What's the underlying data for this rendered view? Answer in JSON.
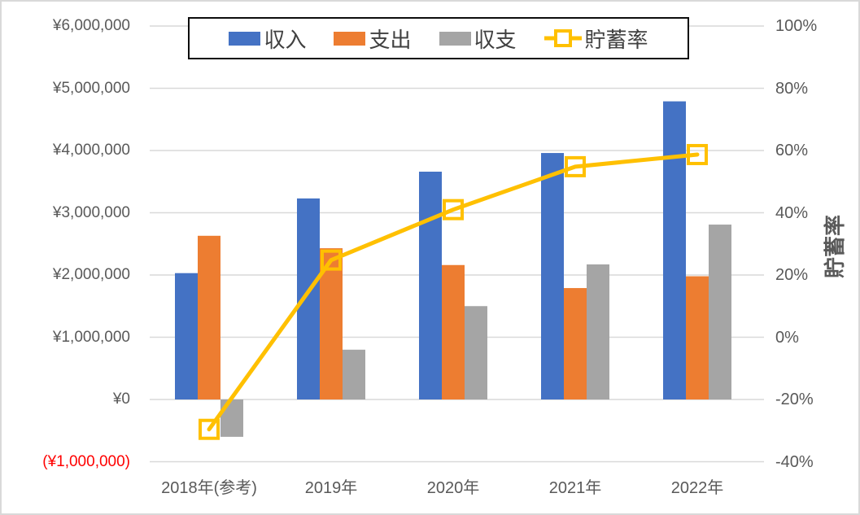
{
  "chart_data": {
    "type": "combo-bar-line",
    "title": "",
    "categories": [
      "2018年(参考)",
      "2019年",
      "2020年",
      "2021年",
      "2022年"
    ],
    "series": [
      {
        "id": "income",
        "name": "収入",
        "type": "bar",
        "axis": "left",
        "color": "#4472C4",
        "values": [
          2030000,
          3230000,
          3660000,
          3960000,
          4790000
        ]
      },
      {
        "id": "expenses",
        "name": "支出",
        "type": "bar",
        "axis": "left",
        "color": "#ED7D31",
        "values": [
          2630000,
          2430000,
          2160000,
          1790000,
          1980000
        ]
      },
      {
        "id": "balance",
        "name": "収支",
        "type": "bar",
        "axis": "left",
        "color": "#A5A5A5",
        "values": [
          -600000,
          800000,
          1500000,
          2170000,
          2810000
        ]
      },
      {
        "id": "savings-rate",
        "name": "貯蓄率",
        "type": "line",
        "axis": "right",
        "color": "#FFC000",
        "unit": "%",
        "values": [
          -29.6,
          24.8,
          41.0,
          54.8,
          58.7
        ]
      }
    ],
    "left_axis": {
      "min": -1000000,
      "max": 6000000,
      "tick_step": 1000000,
      "tick_labels": [
        "¥6,000,000",
        "¥5,000,000",
        "¥4,000,000",
        "¥3,000,000",
        "¥2,000,000",
        "¥1,000,000",
        "¥0",
        "(¥1,000,000)"
      ],
      "negative_label_color": "#FF0000"
    },
    "right_axis": {
      "title": "貯蓄率",
      "min": -40,
      "max": 100,
      "tick_step": 20,
      "tick_labels": [
        "100%",
        "80%",
        "60%",
        "40%",
        "20%",
        "0%",
        "-20%",
        "-40%"
      ]
    },
    "legend": {
      "position": "top",
      "labels": [
        "収入",
        "支出",
        "収支",
        "貯蓄率"
      ]
    },
    "grid": true,
    "styles": {
      "grid_color": "#D9D9D9",
      "axis_text_color": "#595959",
      "legend_text_color": "#404040",
      "legend_border_color": "#0D0D0D",
      "chart_border_color": "#D9D9D9",
      "background": "#FFFFFF"
    }
  }
}
